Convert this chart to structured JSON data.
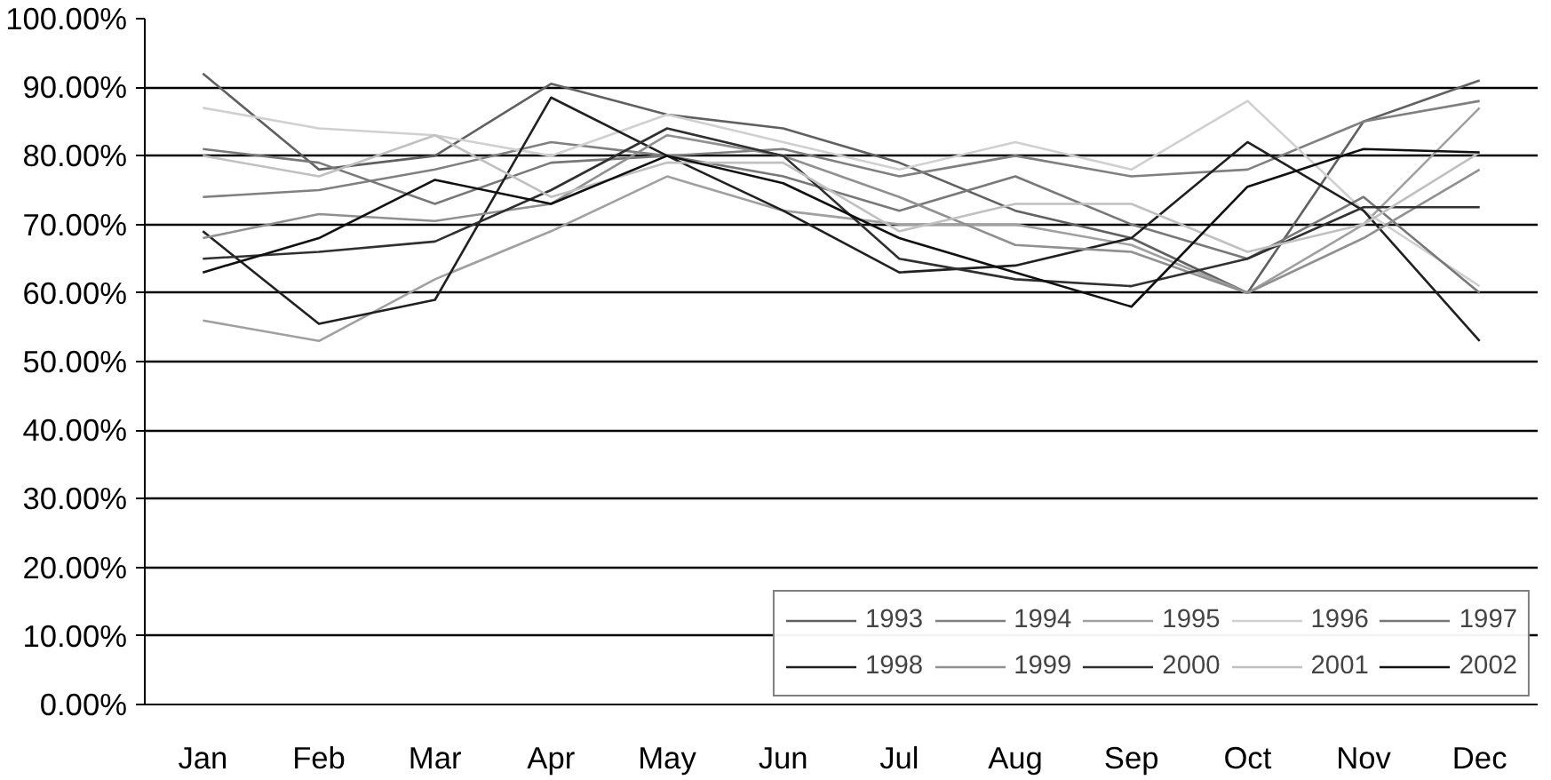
{
  "chart_data": {
    "type": "line",
    "categories": [
      "Jan",
      "Feb",
      "Mar",
      "Apr",
      "May",
      "Jun",
      "Jul",
      "Aug",
      "Sep",
      "Oct",
      "Nov",
      "Dec"
    ],
    "ylim": [
      0,
      100
    ],
    "yticks": [
      {
        "value": 0,
        "label": "0.00%"
      },
      {
        "value": 10,
        "label": "10.00%"
      },
      {
        "value": 20,
        "label": "20.00%"
      },
      {
        "value": 30,
        "label": "30.00%"
      },
      {
        "value": 40,
        "label": "40.00%"
      },
      {
        "value": 50,
        "label": "50.00%"
      },
      {
        "value": 60,
        "label": "60.00%"
      },
      {
        "value": 70,
        "label": "70.00%"
      },
      {
        "value": 80,
        "label": "80.00%"
      },
      {
        "value": 90,
        "label": "90.00%"
      },
      {
        "value": 100,
        "label": "100.00%"
      }
    ],
    "grid": "y",
    "legend": "bottom right",
    "marker": "none",
    "line_style": "solid",
    "series": [
      {
        "name": "1993",
        "color": "#606060",
        "values": [
          92,
          78,
          80,
          90.5,
          86,
          84,
          79,
          72,
          68,
          60,
          85,
          91
        ]
      },
      {
        "name": "1994",
        "color": "#808080",
        "values": [
          74,
          75,
          78,
          82,
          80,
          81,
          77,
          80,
          77,
          78,
          85,
          88
        ]
      },
      {
        "name": "1995",
        "color": "#a0a0a0",
        "values": [
          56,
          53,
          62,
          69,
          77,
          72,
          70,
          70,
          67,
          60,
          70,
          87
        ]
      },
      {
        "name": "1996",
        "color": "#d0d0d0",
        "values": [
          87,
          84,
          83,
          80,
          86,
          82,
          78,
          82,
          78,
          88,
          72,
          61
        ]
      },
      {
        "name": "1997",
        "color": "#787878",
        "values": [
          81,
          79,
          73,
          79,
          80,
          77,
          72,
          77,
          70,
          65,
          74,
          60
        ]
      },
      {
        "name": "1998",
        "color": "#202020",
        "values": [
          69,
          55.5,
          59,
          88.5,
          80,
          72,
          63,
          64,
          68,
          82,
          72,
          53
        ]
      },
      {
        "name": "1999",
        "color": "#909090",
        "values": [
          68,
          71.5,
          70.5,
          73,
          83,
          80,
          74,
          67,
          66,
          60,
          68,
          78
        ]
      },
      {
        "name": "2000",
        "color": "#303030",
        "values": [
          65,
          66,
          67.5,
          75,
          84,
          80,
          65,
          62,
          61,
          65,
          72.5,
          72.5
        ]
      },
      {
        "name": "2001",
        "color": "#c0c0c0",
        "values": [
          80,
          77,
          83,
          74,
          79,
          79,
          69,
          73,
          73,
          66,
          70,
          80.5
        ]
      },
      {
        "name": "2002",
        "color": "#101010",
        "values": [
          63,
          68,
          76.5,
          73,
          80,
          76,
          68,
          63,
          58,
          75.5,
          81,
          80.5
        ]
      }
    ]
  }
}
